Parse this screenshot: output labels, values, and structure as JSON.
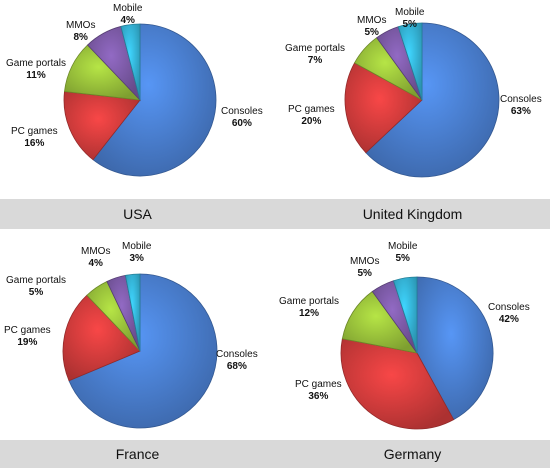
{
  "chart_data": [
    {
      "type": "pie",
      "country": "USA",
      "categories": [
        "Consoles",
        "PC games",
        "Game portals",
        "MMOs",
        "Mobile"
      ],
      "values": [
        60,
        16,
        11,
        8,
        4
      ],
      "value_labels": [
        "60%",
        "16%",
        "11%",
        "8%",
        "4%"
      ]
    },
    {
      "type": "pie",
      "country": "United Kingdom",
      "categories": [
        "Consoles",
        "PC games",
        "Game portals",
        "MMOs",
        "Mobile"
      ],
      "values": [
        63,
        20,
        7,
        5,
        5
      ],
      "value_labels": [
        "63%",
        "20%",
        "7%",
        "5%",
        "5%"
      ]
    },
    {
      "type": "pie",
      "country": "France",
      "categories": [
        "Consoles",
        "PC games",
        "Game portals",
        "MMOs",
        "Mobile"
      ],
      "values": [
        68,
        19,
        5,
        4,
        3
      ],
      "value_labels": [
        "68%",
        "19%",
        "5%",
        "4%",
        "3%"
      ]
    },
    {
      "type": "pie",
      "country": "Germany",
      "categories": [
        "Consoles",
        "PC games",
        "Game portals",
        "MMOs",
        "Mobile"
      ],
      "values": [
        42,
        36,
        12,
        5,
        5
      ],
      "value_labels": [
        "42%",
        "36%",
        "12%",
        "5%",
        "5%"
      ]
    }
  ],
  "colors": {
    "Consoles": "#4a7fd0",
    "PC games": "#d23c3c",
    "Game portals": "#9ac23b",
    "MMOs": "#7c5aa6",
    "Mobile": "#35b5d8"
  }
}
